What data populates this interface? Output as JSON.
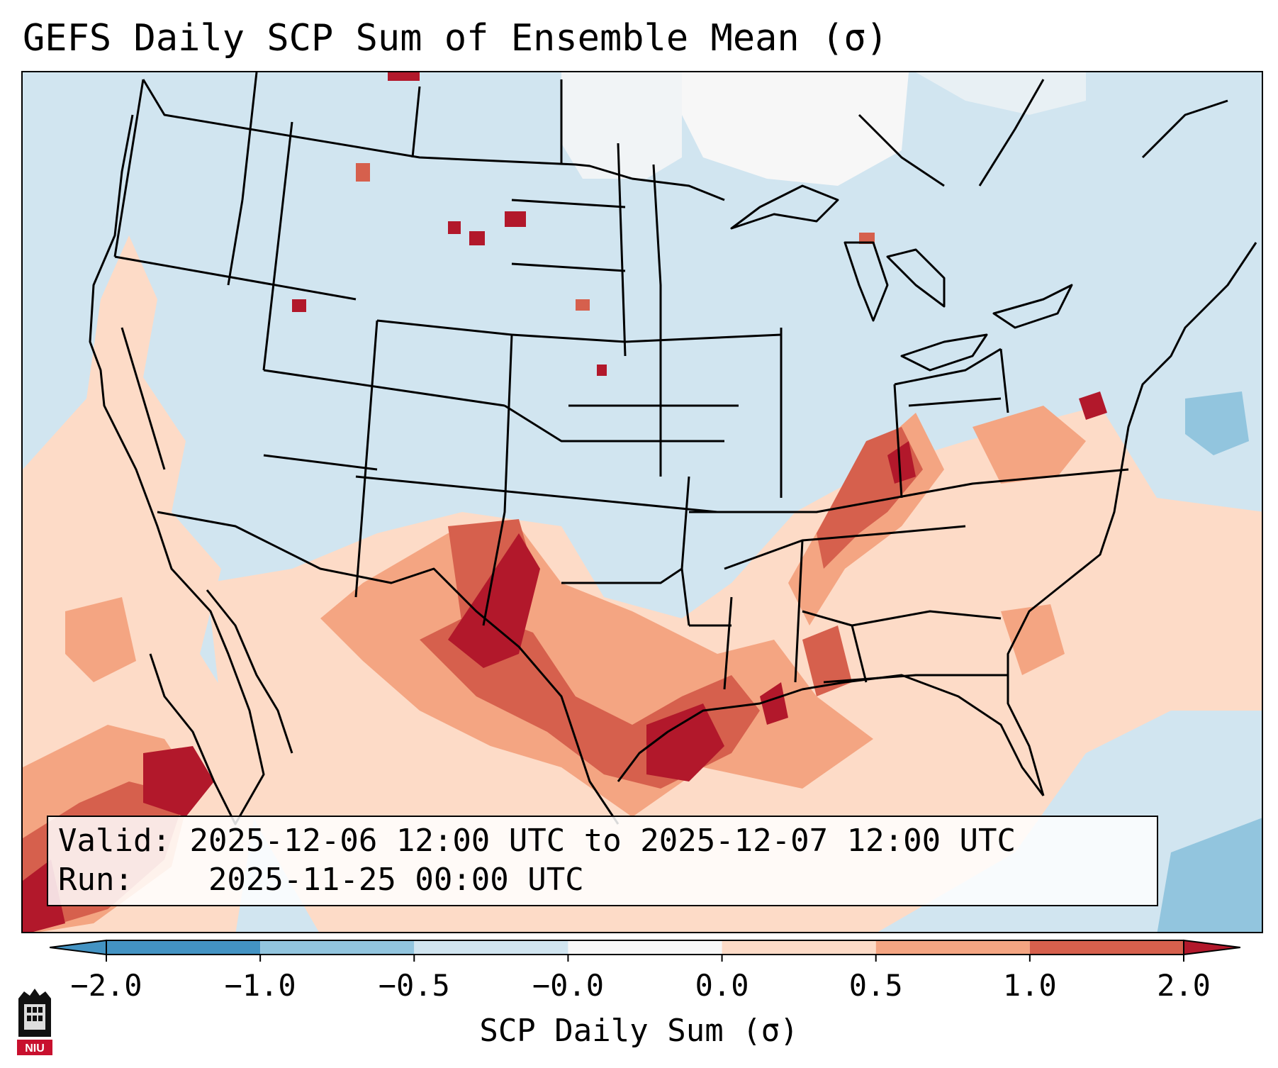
{
  "title": "GEFS Daily SCP Sum of Ensemble Mean (σ)",
  "info": {
    "valid_label": "Valid:",
    "valid_value": "2025-12-06 12:00 UTC to 2025-12-07 12:00 UTC",
    "run_label": "Run:",
    "run_value": "2025-11-25 00:00 UTC"
  },
  "colorbar": {
    "label": "SCP Daily Sum (σ)",
    "ticks": [
      "−2.0",
      "−1.0",
      "−0.5",
      "−0.0",
      "0.0",
      "0.5",
      "1.0",
      "2.0"
    ],
    "colors": [
      "#4393c3",
      "#92c5de",
      "#d1e5f0",
      "#f7f7f7",
      "#fddbc7",
      "#f4a582",
      "#d6604d",
      "#b2182b"
    ]
  },
  "logo": {
    "text": "NIU",
    "color": "#c8102e"
  }
}
